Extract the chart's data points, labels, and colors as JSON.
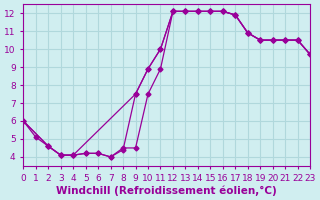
{
  "background_color": "#d0eef0",
  "grid_color": "#b0d8dc",
  "line_color": "#990099",
  "marker_color": "#990099",
  "title": "",
  "xlabel": "Windchill (Refroidissement éolien,°C)",
  "xlim": [
    0,
    23
  ],
  "ylim": [
    3.5,
    12.5
  ],
  "xticks": [
    0,
    1,
    2,
    3,
    4,
    5,
    6,
    7,
    8,
    9,
    10,
    11,
    12,
    13,
    14,
    15,
    16,
    17,
    18,
    19,
    20,
    21,
    22,
    23
  ],
  "yticks": [
    4,
    5,
    6,
    7,
    8,
    9,
    10,
    11,
    12
  ],
  "series1_x": [
    0,
    1,
    2,
    3,
    4,
    5,
    6,
    7,
    8,
    9,
    10,
    11,
    12,
    13,
    14,
    15,
    16,
    17,
    18,
    19,
    20,
    21,
    22,
    23
  ],
  "series1_y": [
    6.0,
    5.1,
    4.6,
    4.1,
    4.1,
    4.2,
    4.2,
    4.0,
    4.5,
    4.5,
    7.5,
    8.9,
    12.1,
    12.1,
    12.1,
    12.1,
    12.1,
    11.9,
    10.9,
    10.5,
    10.5,
    10.5,
    10.5,
    9.7
  ],
  "series2_x": [
    0,
    2,
    3,
    4,
    5,
    6,
    7,
    8,
    9,
    10,
    11,
    12,
    13,
    14,
    15,
    16,
    17,
    18,
    19,
    20,
    21,
    22,
    23
  ],
  "series2_y": [
    6.0,
    4.6,
    4.1,
    4.1,
    4.2,
    4.2,
    4.0,
    4.4,
    7.5,
    8.9,
    10.0,
    12.1,
    12.1,
    12.1,
    12.1,
    12.1,
    11.9,
    10.9,
    10.5,
    10.5,
    10.5,
    10.5,
    9.7
  ],
  "series3_x": [
    0,
    2,
    3,
    4,
    9,
    10,
    11,
    12,
    13,
    14,
    15,
    16,
    17,
    18,
    19,
    20,
    21,
    22,
    23
  ],
  "series3_y": [
    6.0,
    4.6,
    4.1,
    4.1,
    7.5,
    8.9,
    10.0,
    12.1,
    12.1,
    12.1,
    12.1,
    12.1,
    11.9,
    10.9,
    10.5,
    10.5,
    10.5,
    10.5,
    9.7
  ],
  "xlabel_fontsize": 7.5,
  "tick_fontsize": 6.5
}
